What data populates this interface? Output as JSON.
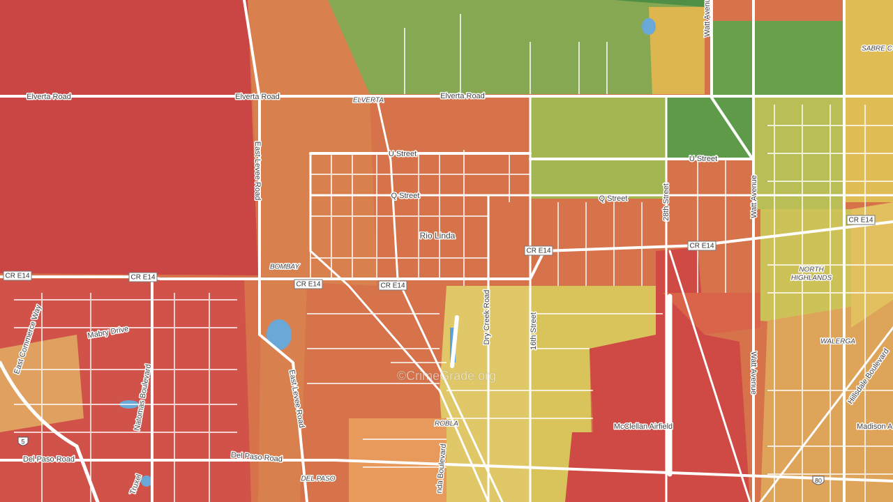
{
  "labels": {
    "elverta_road": "Elverta Road",
    "elverta": "ELVERTA",
    "u_street": "U Street",
    "q_street": "Q Street",
    "rio_linda": "Rio Linda",
    "cr_e14": "CR E14",
    "bombay": "BOMBAY",
    "east_levee_road": "East Levee Road",
    "street_28th": "28th Street",
    "watt_avenue": "Watt Avenue",
    "north": "NORTH",
    "highlands": "HIGHLANDS",
    "walerga": "WALERGA",
    "hillsdale_boulevard": "Hillsdale Boulevard",
    "madison": "Madison A",
    "mcclellan_airfield": "McClellan Airfield",
    "dry_creek_road": "Dry Creek Road",
    "street_16th": "16th Street",
    "robla": "ROBLA",
    "natomas_boulevard_partial": "nda Boulevard",
    "del_paso_road": "Del Paso Road",
    "del_paso": "DEL PASO",
    "mabry_drive": "Mabry Drive",
    "east_commerce_way": "East Commerce Way",
    "natomas_boulevard": "Natomas Boulevard",
    "sabre": "SABRE C",
    "truxel": "Truxel",
    "i5": "5",
    "i80": "80",
    "watermark": "©CrimeGrade.org"
  }
}
